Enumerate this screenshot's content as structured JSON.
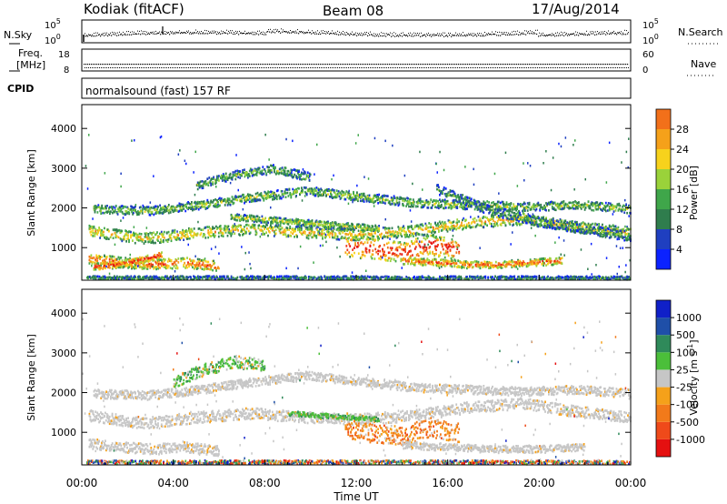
{
  "header": {
    "station": "Kodiak (fitACF)",
    "beam": "Beam 08",
    "date": "17/Aug/2014"
  },
  "param_panels": {
    "nsky": {
      "label": "N.Sky",
      "ticks_left": [
        "10^5",
        "10^0"
      ],
      "ticks_right": [
        "10^5",
        "10^0"
      ],
      "right_label": "N.Search"
    },
    "freq": {
      "label_line1": "Freq.",
      "label_line2": "[MHz]",
      "ticks_left": [
        "18",
        "8"
      ],
      "ticks_right": [
        "60",
        "0"
      ],
      "right_label": "Nave"
    },
    "cpid": {
      "label": "CPID",
      "text": "normalsound (fast) 157 RF"
    }
  },
  "chart_data": [
    {
      "type": "heatmap",
      "name": "power",
      "xlabel": "",
      "ylabel": "Slant Range [km]",
      "xlim": [
        0,
        24
      ],
      "ylim": [
        180,
        4600
      ],
      "yticks": [
        "1000",
        "2000",
        "3000",
        "4000"
      ],
      "yticks_values": [
        1000,
        2000,
        3000,
        4000
      ],
      "colorbar": {
        "label": "Power [dB]",
        "range": [
          0,
          32
        ],
        "ticks": [
          "4",
          "8",
          "12",
          "16",
          "20",
          "24",
          "28"
        ],
        "colors": [
          "#0b22ff",
          "#1f3fc0",
          "#2f7d4d",
          "#3fa64a",
          "#9ad23a",
          "#f7d21c",
          "#f5a11a",
          "#f2701a",
          "#ef3a1a",
          "#e51010"
        ]
      },
      "bands": [
        {
          "t0": 0.3,
          "t1": 24,
          "r": [
            1450,
            1250,
            1400,
            1500,
            1400,
            1350,
            1450,
            1650,
            1750,
            1550,
            1400
          ],
          "w": 280,
          "level": 0.62
        },
        {
          "t0": 0.3,
          "t1": 6,
          "r": [
            750,
            650,
            600,
            650,
            550
          ],
          "w": 260,
          "level": 0.85
        },
        {
          "t0": 0.5,
          "t1": 3.5,
          "r": [
            550,
            600,
            700,
            850
          ],
          "w": 180,
          "level": 0.95
        },
        {
          "t0": 6.5,
          "t1": 13,
          "r": [
            1800,
            1700,
            1600,
            1500
          ],
          "w": 160,
          "level": 0.5
        },
        {
          "t0": 11.5,
          "t1": 16.5,
          "r": [
            1050,
            1000,
            900,
            1100,
            950
          ],
          "w": 520,
          "level": 1.0
        },
        {
          "t0": 14,
          "t1": 21,
          "r": [
            700,
            650,
            600,
            600,
            650,
            700
          ],
          "w": 180,
          "level": 0.85
        },
        {
          "t0": 0.5,
          "t1": 24,
          "r": [
            2000,
            1950,
            2100,
            2300,
            2450,
            2300,
            2150,
            2100,
            2050,
            2100,
            2000
          ],
          "w": 220,
          "level": 0.45
        },
        {
          "t0": 5,
          "t1": 10,
          "r": [
            2600,
            2850,
            3000,
            2800
          ],
          "w": 220,
          "level": 0.4
        },
        {
          "t0": 15.5,
          "t1": 24,
          "r": [
            2500,
            2000,
            1700,
            1500,
            1300
          ],
          "w": 240,
          "level": 0.35
        },
        {
          "t0": 0.2,
          "t1": 24,
          "r": [
            250,
            250
          ],
          "w": 120,
          "level": 0.3
        }
      ]
    },
    {
      "type": "heatmap",
      "name": "velocity",
      "xlabel": "Time UT",
      "ylabel": "Slant Range [km]",
      "xlim": [
        0,
        24
      ],
      "ylim": [
        180,
        4600
      ],
      "xticks": [
        "00:00",
        "04:00",
        "08:00",
        "12:00",
        "16:00",
        "20:00",
        "00:00"
      ],
      "xticks_values": [
        0,
        4,
        8,
        12,
        16,
        20,
        24
      ],
      "yticks": [
        "1000",
        "2000",
        "3000",
        "4000"
      ],
      "yticks_values": [
        1000,
        2000,
        3000,
        4000
      ],
      "colorbar": {
        "label": "Velocity [m s^-1]",
        "ticks": [
          "1000",
          "500",
          "100",
          "25",
          "-25",
          "-100",
          "-500",
          "-1000"
        ],
        "colors": [
          "#1020c8",
          "#1f4fa8",
          "#2f8a5a",
          "#4bbf3a",
          "#c6c6c6",
          "#f5a11a",
          "#f27a1a",
          "#ef4a1a",
          "#e51010"
        ]
      },
      "bands": [
        {
          "t0": 0.3,
          "t1": 24,
          "r": [
            1450,
            1250,
            1400,
            1500,
            1400,
            1350,
            1450,
            1650,
            1750,
            1550,
            1400
          ],
          "w": 280,
          "cls": "gray"
        },
        {
          "t0": 0.3,
          "t1": 6,
          "r": [
            750,
            650,
            600,
            650,
            550
          ],
          "w": 260,
          "cls": "gray"
        },
        {
          "t0": 0.5,
          "t1": 24,
          "r": [
            2000,
            1950,
            2100,
            2300,
            2450,
            2300,
            2150,
            2100,
            2050,
            2100,
            2000
          ],
          "w": 220,
          "cls": "gray"
        },
        {
          "t0": 11.5,
          "t1": 16.5,
          "r": [
            1100,
            1000,
            950,
            1150,
            1000
          ],
          "w": 480,
          "cls": "orange"
        },
        {
          "t0": 4,
          "t1": 8,
          "r": [
            2300,
            2600,
            2800,
            2700
          ],
          "w": 300,
          "cls": "green"
        },
        {
          "t0": 9,
          "t1": 13,
          "r": [
            1500,
            1450,
            1400,
            1350
          ],
          "w": 120,
          "cls": "green"
        },
        {
          "t0": 14,
          "t1": 22,
          "r": [
            700,
            650,
            600,
            600,
            650
          ],
          "w": 180,
          "cls": "gray"
        },
        {
          "t0": 0.2,
          "t1": 24,
          "r": [
            250,
            250
          ],
          "w": 140,
          "cls": "mixed"
        }
      ]
    }
  ]
}
